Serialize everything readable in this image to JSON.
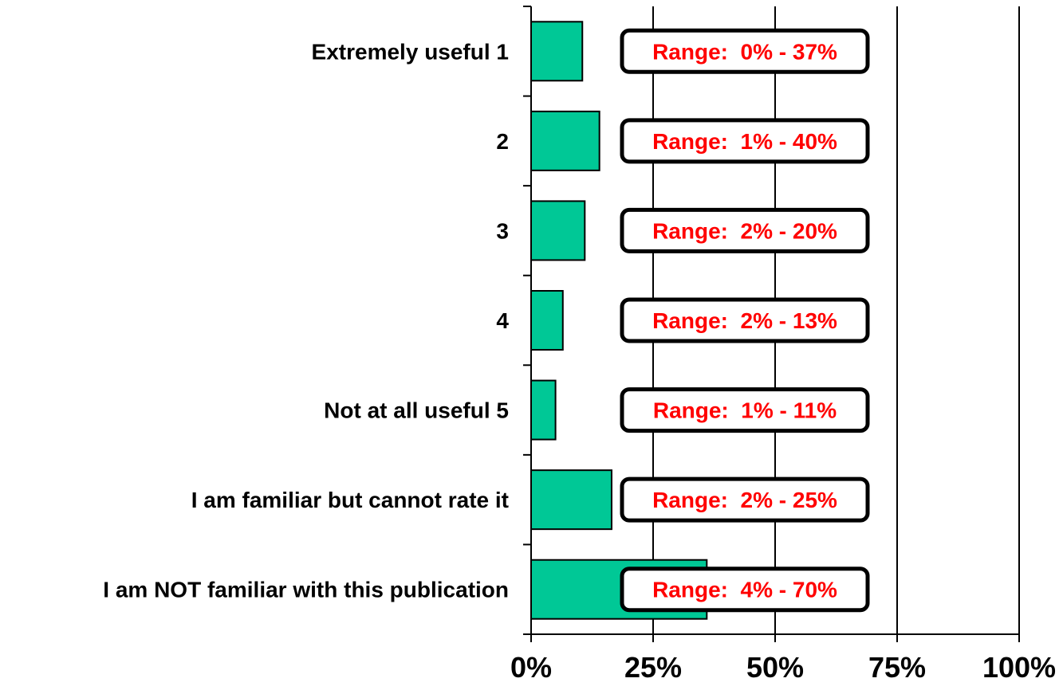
{
  "chart_data": {
    "type": "bar",
    "orientation": "horizontal",
    "title": "",
    "xlabel": "",
    "ylabel": "",
    "categories": [
      "Extremely useful 1",
      "2",
      "3",
      "4",
      "Not at all useful 5",
      "I am familiar but cannot rate it",
      "I am NOT familiar with this publication"
    ],
    "values": [
      10.5,
      14,
      11,
      6.5,
      5,
      16.5,
      36
    ],
    "unit": "%",
    "xlim": [
      0,
      100
    ],
    "x_ticks": [
      0,
      25,
      50,
      75,
      100
    ],
    "x_tick_labels": [
      "0%",
      "25%",
      "50%",
      "75%",
      "100%"
    ],
    "grid": "vertical",
    "annotations": [
      "Range:  0% - 37%",
      "Range:  1% - 40%",
      "Range:  2% - 20%",
      "Range:  2% - 13%",
      "Range:  1% - 11%",
      "Range:  2% - 25%",
      "Range:  4% - 70%"
    ],
    "colors": {
      "bar": "#00c896",
      "annotation_text": "#ff0000",
      "annotation_border": "#000000"
    }
  }
}
